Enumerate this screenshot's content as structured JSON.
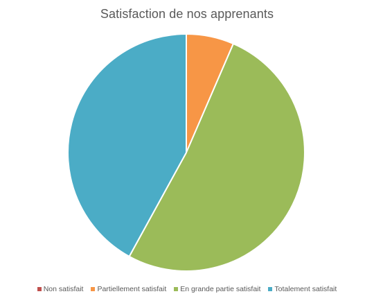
{
  "chart_data": {
    "type": "pie",
    "title": "Satisfaction de nos apprenants",
    "categories": [
      "Non satisfait",
      "Partiellement satisfait",
      "En grande partie satisfait",
      "Totalement satisfait"
    ],
    "values": [
      0,
      6.5,
      51.5,
      42
    ],
    "colors": [
      "#c0504d",
      "#f79646",
      "#9bbb59",
      "#4bacc6"
    ],
    "legend_position": "bottom",
    "start_angle": "top",
    "direction": "clockwise"
  }
}
